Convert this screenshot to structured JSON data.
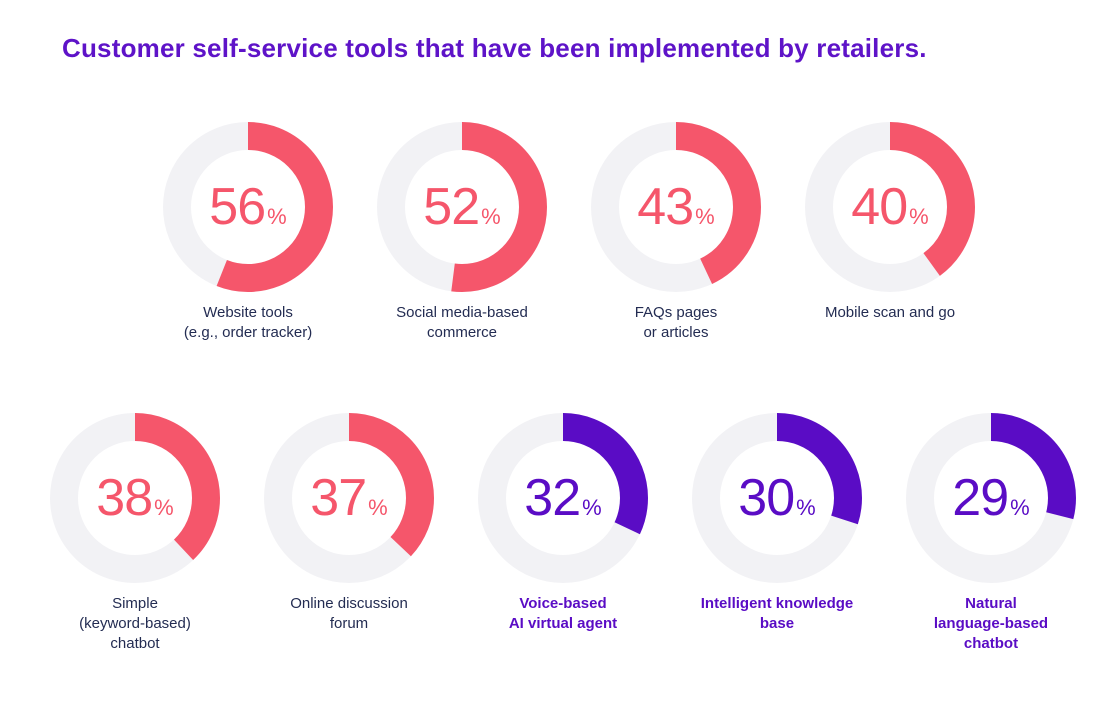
{
  "page_title": "Customer self-service tools that have been implemented by retailers.",
  "colors": {
    "coral": "#f5566b",
    "purple": "#5a0cc5",
    "ring": "#f2f2f5",
    "title_purple": "#5e13c8",
    "label_navy": "#232c52"
  },
  "unit_symbol": "%",
  "chart_data": {
    "type": "pie",
    "variant": "donut-grid",
    "title": "Customer self-service tools that have been implemented by retailers.",
    "unit": "%",
    "value_range": [
      0,
      100
    ],
    "arc_start": "top",
    "arc_direction": "clockwise",
    "legend_position": "none",
    "rows": [
      {
        "items": [
          {
            "label": "Website tools (e.g., order tracker)",
            "label_lines": [
              "Website tools",
              "(e.g., order tracker)"
            ],
            "value": 56,
            "theme": "coral"
          },
          {
            "label": "Social media-based commerce",
            "label_lines": [
              "Social media-based",
              "commerce"
            ],
            "value": 52,
            "theme": "coral"
          },
          {
            "label": "FAQs pages or articles",
            "label_lines": [
              "FAQs pages",
              "or articles"
            ],
            "value": 43,
            "theme": "coral"
          },
          {
            "label": "Mobile scan and go",
            "label_lines": [
              "Mobile scan and go"
            ],
            "value": 40,
            "theme": "coral"
          }
        ]
      },
      {
        "items": [
          {
            "label": "Simple (keyword-based) chatbot",
            "label_lines": [
              "Simple",
              "(keyword-based)",
              "chatbot"
            ],
            "value": 38,
            "theme": "coral"
          },
          {
            "label": "Online discussion forum",
            "label_lines": [
              "Online discussion",
              "forum"
            ],
            "value": 37,
            "theme": "coral"
          },
          {
            "label": "Voice-based AI virtual agent",
            "label_lines": [
              "Voice-based",
              "AI virtual agent"
            ],
            "value": 32,
            "theme": "purple"
          },
          {
            "label": "Intelligent knowledge base",
            "label_lines": [
              "Intelligent knowledge",
              "base"
            ],
            "value": 30,
            "theme": "purple"
          },
          {
            "label": "Natural language-based chatbot",
            "label_lines": [
              "Natural",
              "language-based",
              "chatbot"
            ],
            "value": 29,
            "theme": "purple"
          }
        ]
      }
    ]
  }
}
